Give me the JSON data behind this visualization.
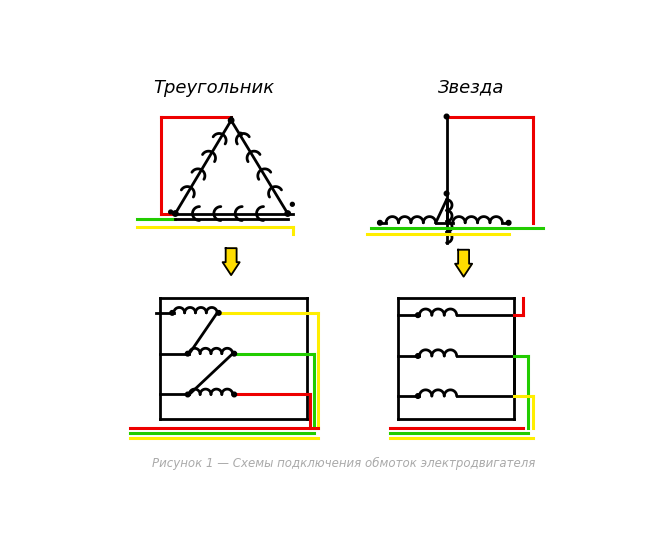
{
  "title_left": "Треугольник",
  "title_right": "Звезда",
  "caption": "Рисунок 1 — Схемы подключения обмоток электродвигателя",
  "bg_color": "#ffffff",
  "line_color": "#000000",
  "red": "#ee0000",
  "green": "#22cc00",
  "yellow": "#ffee00",
  "arrow_fill": "#ffdd00",
  "title_fontsize": 13,
  "caption_fontsize": 8.5,
  "caption_color": "#aaaaaa"
}
